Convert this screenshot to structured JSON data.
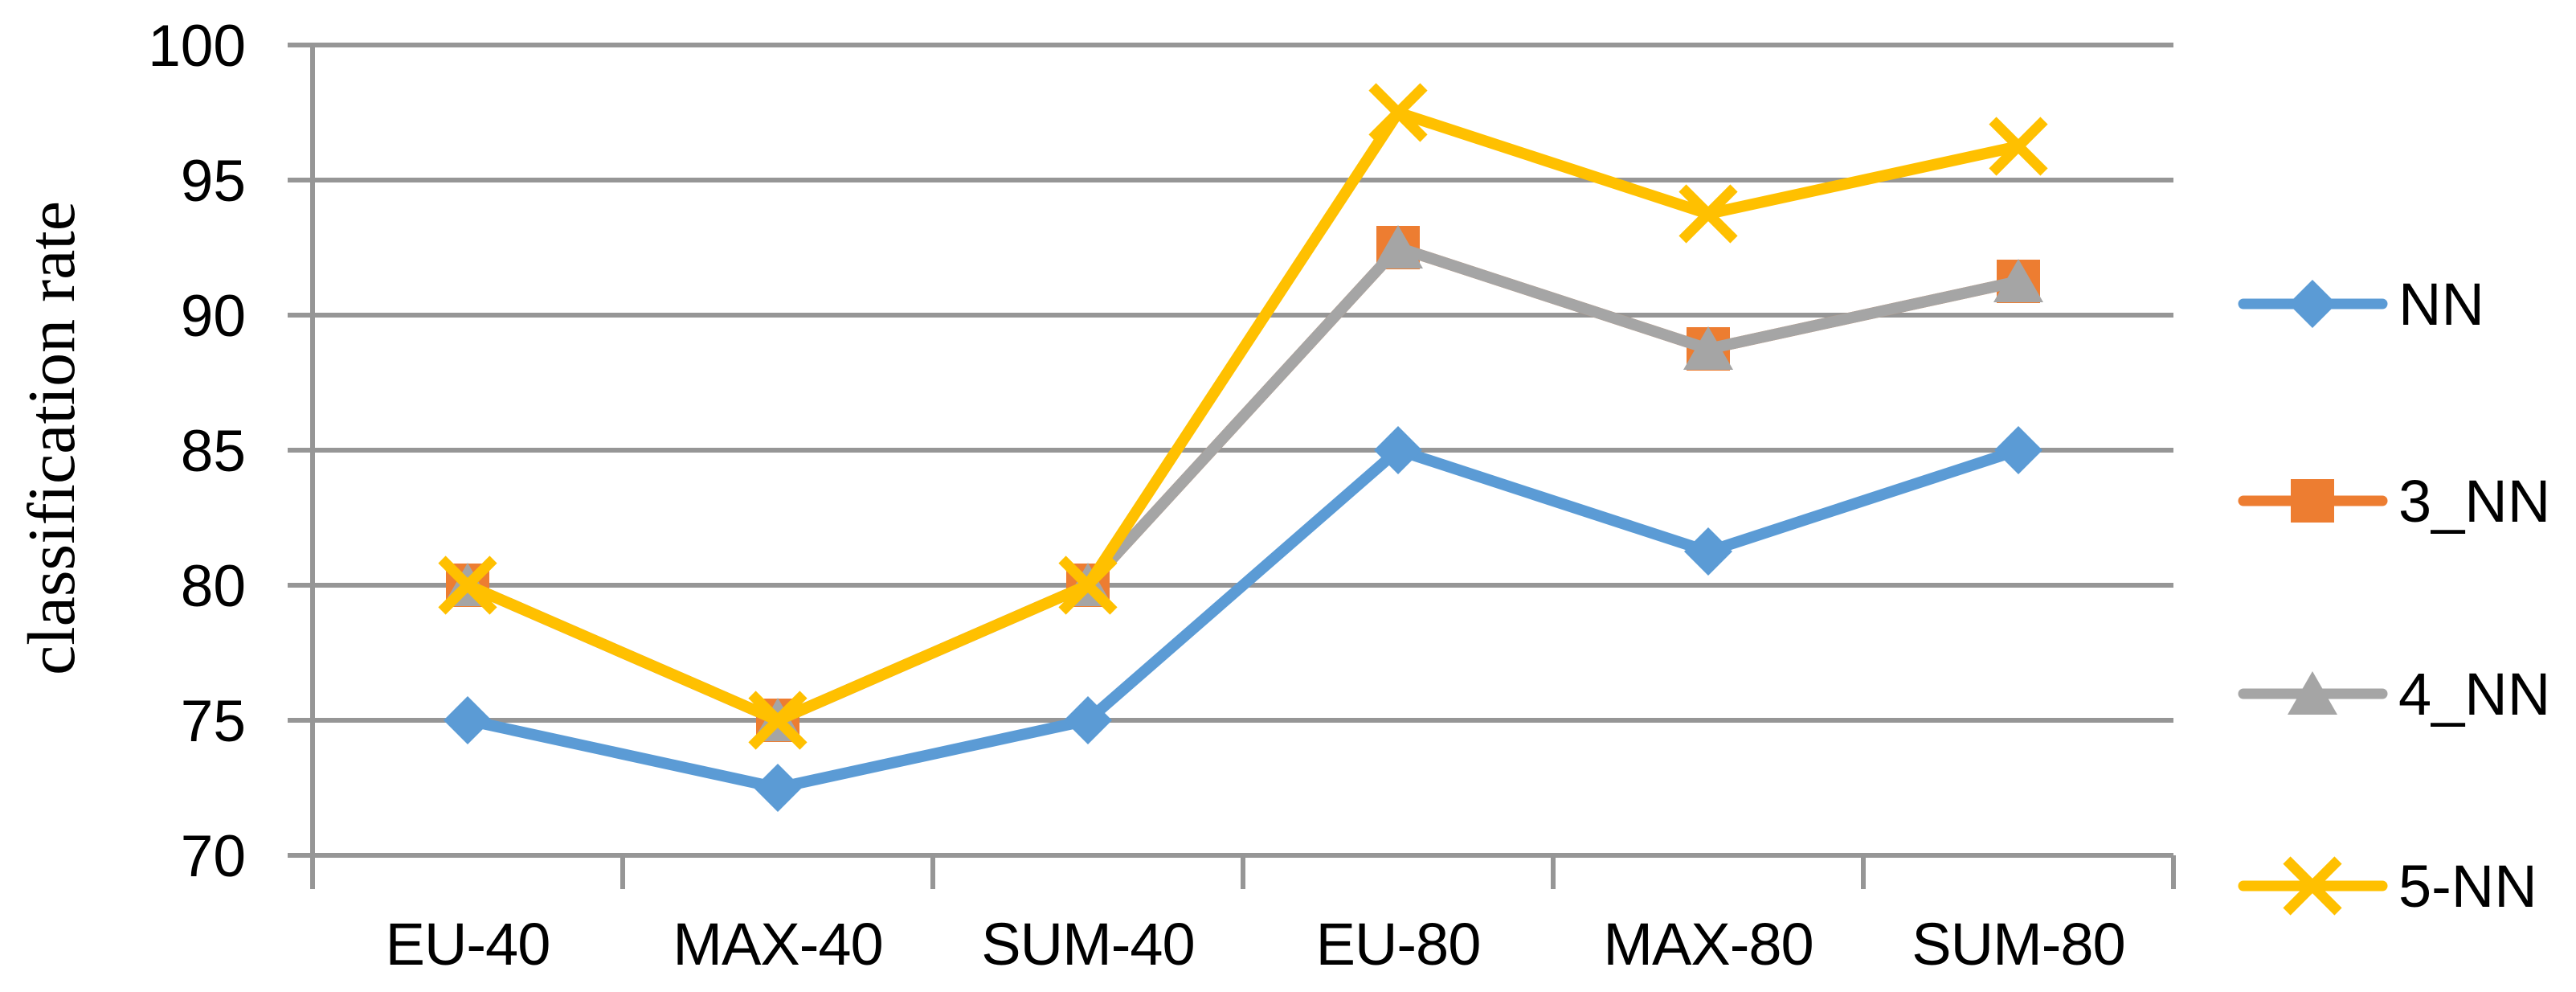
{
  "chart_data": {
    "type": "line",
    "title": "",
    "xlabel": "",
    "ylabel": "classification rate",
    "categories": [
      "EU-40",
      "MAX-40",
      "SUM-40",
      "EU-80",
      "MAX-80",
      "SUM-80"
    ],
    "series": [
      {
        "name": "NN",
        "color": "#5B9BD5",
        "marker": "diamond",
        "values": [
          75,
          72.5,
          75,
          85,
          81.25,
          85
        ]
      },
      {
        "name": "3_NN",
        "color": "#ED7D31",
        "marker": "square",
        "values": [
          80,
          75,
          80,
          92.5,
          88.75,
          91.25
        ]
      },
      {
        "name": "4_NN",
        "color": "#A5A5A5",
        "marker": "triangle",
        "values": [
          80,
          75,
          80,
          92.5,
          88.75,
          91.25
        ]
      },
      {
        "name": "5-NN",
        "color": "#FFC000",
        "marker": "x",
        "values": [
          80,
          75,
          80,
          97.5,
          93.75,
          96.25
        ]
      }
    ],
    "ylim": [
      70,
      100
    ],
    "yticks": [
      70,
      75,
      80,
      85,
      90,
      95,
      100
    ],
    "grid": true,
    "legend_position": "right",
    "axis_color": "#969696",
    "text_color": "#000000",
    "background_color": "#FFFFFF"
  }
}
